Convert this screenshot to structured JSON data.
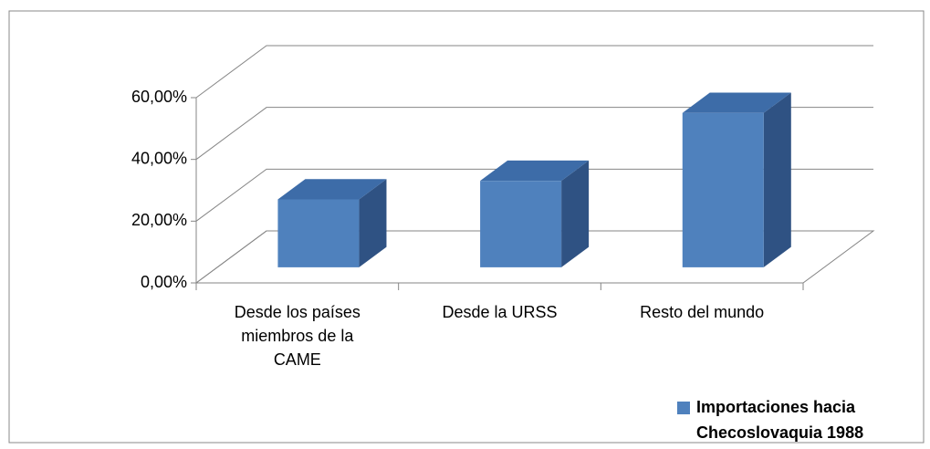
{
  "chart_data": {
    "type": "bar3d",
    "categories": [
      "Desde los países miembros de la CAME",
      "Desde la URSS",
      "Resto del mundo"
    ],
    "series": [
      {
        "name": "Importaciones hacia Checoslovaquia 1988",
        "color": "#4f81bd",
        "values": [
          22,
          28,
          50
        ]
      }
    ],
    "ylim": [
      0,
      60
    ],
    "yticks": [
      {
        "value": 0,
        "label": "0,00%"
      },
      {
        "value": 20,
        "label": "20,00%"
      },
      {
        "value": 40,
        "label": "40,00%"
      },
      {
        "value": 60,
        "label": "60,00%"
      }
    ],
    "grid": true,
    "legend": "bottom-right"
  }
}
